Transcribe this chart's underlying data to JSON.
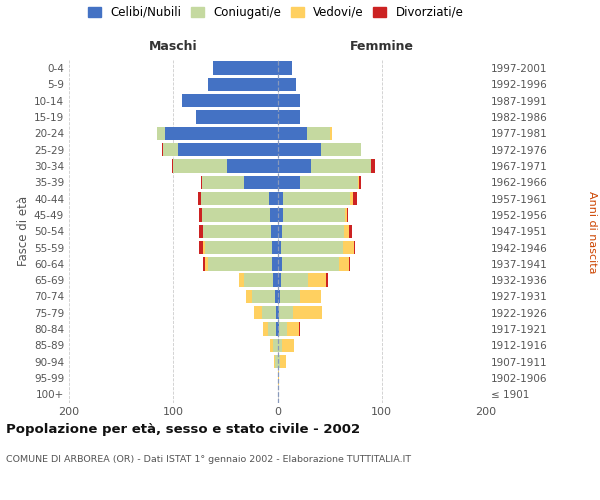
{
  "age_groups": [
    "100+",
    "95-99",
    "90-94",
    "85-89",
    "80-84",
    "75-79",
    "70-74",
    "65-69",
    "60-64",
    "55-59",
    "50-54",
    "45-49",
    "40-44",
    "35-39",
    "30-34",
    "25-29",
    "20-24",
    "15-19",
    "10-14",
    "5-9",
    "0-4"
  ],
  "birth_years": [
    "≤ 1901",
    "1902-1906",
    "1907-1911",
    "1912-1916",
    "1917-1921",
    "1922-1926",
    "1927-1931",
    "1932-1936",
    "1937-1941",
    "1942-1946",
    "1947-1951",
    "1952-1956",
    "1957-1961",
    "1962-1966",
    "1967-1971",
    "1972-1976",
    "1977-1981",
    "1982-1986",
    "1987-1991",
    "1992-1996",
    "1997-2001"
  ],
  "maschi": {
    "celibi": [
      0,
      0,
      0,
      0,
      1,
      1,
      2,
      4,
      5,
      5,
      6,
      7,
      8,
      32,
      48,
      95,
      108,
      78,
      92,
      67,
      62
    ],
    "coniugati": [
      0,
      0,
      2,
      4,
      8,
      14,
      22,
      28,
      62,
      65,
      65,
      65,
      65,
      40,
      52,
      15,
      8,
      0,
      0,
      0,
      0
    ],
    "vedovi": [
      0,
      0,
      1,
      3,
      5,
      8,
      6,
      5,
      3,
      1,
      0,
      0,
      0,
      0,
      0,
      0,
      0,
      0,
      0,
      0,
      0
    ],
    "divorziati": [
      0,
      0,
      0,
      0,
      0,
      0,
      0,
      0,
      1,
      4,
      4,
      3,
      3,
      1,
      1,
      1,
      0,
      0,
      0,
      0,
      0
    ]
  },
  "femmine": {
    "nubili": [
      0,
      0,
      0,
      0,
      1,
      1,
      2,
      3,
      4,
      3,
      4,
      5,
      5,
      22,
      32,
      42,
      28,
      22,
      22,
      18,
      14
    ],
    "coniugate": [
      0,
      0,
      2,
      4,
      8,
      14,
      20,
      26,
      55,
      60,
      60,
      60,
      65,
      55,
      58,
      38,
      22,
      0,
      0,
      0,
      0
    ],
    "vedove": [
      0,
      1,
      6,
      12,
      12,
      28,
      20,
      18,
      10,
      10,
      5,
      2,
      2,
      1,
      0,
      0,
      2,
      0,
      0,
      0,
      0
    ],
    "divorziate": [
      0,
      0,
      0,
      0,
      1,
      0,
      0,
      1,
      1,
      1,
      2,
      1,
      4,
      2,
      4,
      0,
      0,
      0,
      0,
      0,
      0
    ]
  },
  "colors": {
    "celibi": "#4472C4",
    "coniugati": "#C5D9A0",
    "vedovi": "#FFD060",
    "divorziati": "#CC2222"
  },
  "xlim": 200,
  "title": "Popolazione per età, sesso e stato civile - 2002",
  "subtitle": "COMUNE DI ARBOREA (OR) - Dati ISTAT 1° gennaio 2002 - Elaborazione TUTTITALIA.IT",
  "ylabel_left": "Fasce di età",
  "ylabel_right": "Anni di nascita",
  "xlabel_maschi": "Maschi",
  "xlabel_femmine": "Femmine",
  "legend_labels": [
    "Celibi/Nubili",
    "Coniugati/e",
    "Vedovi/e",
    "Divorziati/e"
  ],
  "background_color": "#ffffff",
  "grid_color": "#cccccc",
  "anni_nascita_color": "#cc4400"
}
